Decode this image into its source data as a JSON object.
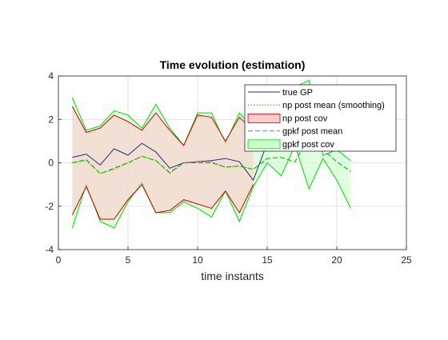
{
  "chart_data": {
    "type": "line",
    "title": "Time evolution (estimation)",
    "xlabel": "time instants",
    "ylabel": "",
    "xlim": [
      0,
      25
    ],
    "ylim": [
      -4,
      4
    ],
    "xticks": [
      0,
      5,
      10,
      15,
      20,
      25
    ],
    "yticks": [
      -4,
      -2,
      0,
      2,
      4
    ],
    "grid": true,
    "legend_position": "top-right",
    "x": [
      1,
      2,
      3,
      4,
      5,
      6,
      7,
      8,
      9,
      10,
      11,
      12,
      13,
      14,
      15,
      16,
      17,
      18,
      19,
      20,
      21
    ],
    "series": [
      {
        "name": "true GP",
        "kind": "line",
        "color": "#1f2f7a",
        "values": [
          0.25,
          0.4,
          -0.1,
          0.65,
          0.35,
          0.9,
          0.5,
          -0.25,
          0.0,
          0.05,
          0.1,
          0.2,
          0.05,
          -0.8,
          0.9,
          null,
          null,
          null,
          null,
          null,
          -0.3
        ]
      },
      {
        "name": "np post mean (smoothing)",
        "kind": "dotted",
        "color": "#e04040",
        "values": [
          0.0,
          0.1,
          -0.5,
          -0.3,
          0.0,
          0.3,
          0.1,
          -0.5,
          0.0,
          0.05,
          0.05,
          -0.2,
          -0.15,
          -0.3,
          0.2,
          null,
          null,
          null,
          null,
          null,
          null
        ]
      },
      {
        "name": "np post cov",
        "kind": "band",
        "color": "#cc0000",
        "fill": "#ffcccc",
        "upper": [
          2.6,
          1.4,
          1.6,
          2.2,
          1.9,
          1.5,
          2.3,
          1.5,
          0.8,
          2.2,
          2.1,
          1.0,
          2.1,
          1.5,
          null,
          null,
          null,
          null,
          null,
          null,
          null
        ],
        "lower": [
          -2.4,
          -1.1,
          -2.6,
          -2.6,
          -1.7,
          -1.0,
          -2.3,
          -2.2,
          -1.7,
          -1.9,
          -2.1,
          -1.3,
          -2.3,
          -1.0,
          null,
          null,
          null,
          null,
          null,
          null,
          null
        ]
      },
      {
        "name": "gpkf post mean",
        "kind": "dashed",
        "color": "#00cc00",
        "values": [
          0.0,
          0.15,
          -0.5,
          -0.25,
          0.0,
          0.3,
          0.1,
          -0.45,
          0.0,
          0.0,
          0.0,
          -0.2,
          -0.15,
          -0.3,
          0.2,
          0.25,
          0.05,
          1.3,
          0.6,
          0.05,
          -0.4
        ]
      },
      {
        "name": "gpkf post cov",
        "kind": "band",
        "color": "#00dd00",
        "fill": "#ccffcc",
        "upper": [
          3.0,
          1.5,
          1.7,
          2.4,
          2.2,
          1.6,
          2.7,
          1.6,
          0.8,
          2.3,
          2.3,
          0.9,
          2.3,
          1.6,
          0.6,
          0.9,
          3.5,
          3.8,
          0.35,
          0.6,
          0.1
        ],
        "lower": [
          -3.0,
          -1.0,
          -2.7,
          -3.0,
          -1.8,
          -0.9,
          -2.3,
          -2.3,
          -1.8,
          -2.1,
          -2.5,
          -1.3,
          -2.7,
          -1.1,
          0.0,
          -0.6,
          0.8,
          -1.2,
          0.2,
          -0.8,
          -2.1
        ]
      }
    ]
  }
}
